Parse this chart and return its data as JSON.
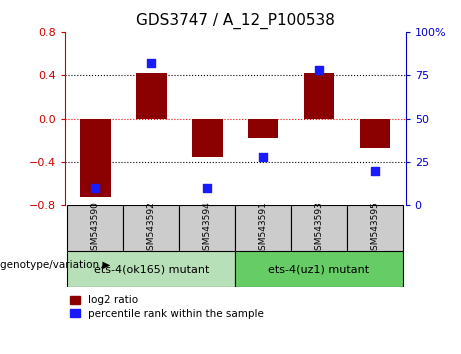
{
  "title": "GDS3747 / A_12_P100538",
  "samples": [
    "GSM543590",
    "GSM543592",
    "GSM543594",
    "GSM543591",
    "GSM543593",
    "GSM543595"
  ],
  "log2_ratio": [
    -0.72,
    0.42,
    -0.35,
    -0.18,
    0.42,
    -0.27
  ],
  "percentile_rank": [
    10,
    82,
    10,
    28,
    78,
    20
  ],
  "bar_color": "#8B0000",
  "dot_color": "#1a1aff",
  "ylim_left": [
    -0.8,
    0.8
  ],
  "ylim_right": [
    0,
    100
  ],
  "yticks_left": [
    -0.8,
    -0.4,
    0,
    0.4,
    0.8
  ],
  "yticks_right": [
    0,
    25,
    50,
    75,
    100
  ],
  "hlines": [
    -0.4,
    0,
    0.4
  ],
  "hline_colors": [
    "black",
    "red",
    "black"
  ],
  "hline_styles": [
    "dotted",
    "dotted",
    "dotted"
  ],
  "group1_label": "ets-4(ok165) mutant",
  "group2_label": "ets-4(uz1) mutant",
  "group_label_prefix": "genotype/variation",
  "legend_bar_label": "log2 ratio",
  "legend_dot_label": "percentile rank within the sample",
  "title_color": "black",
  "left_axis_color": "#cc0000",
  "right_axis_color": "#0000cc",
  "group1_bg": "#b8e0b8",
  "group2_bg": "#66cc66",
  "sample_bg": "#cccccc",
  "bar_width": 0.55
}
